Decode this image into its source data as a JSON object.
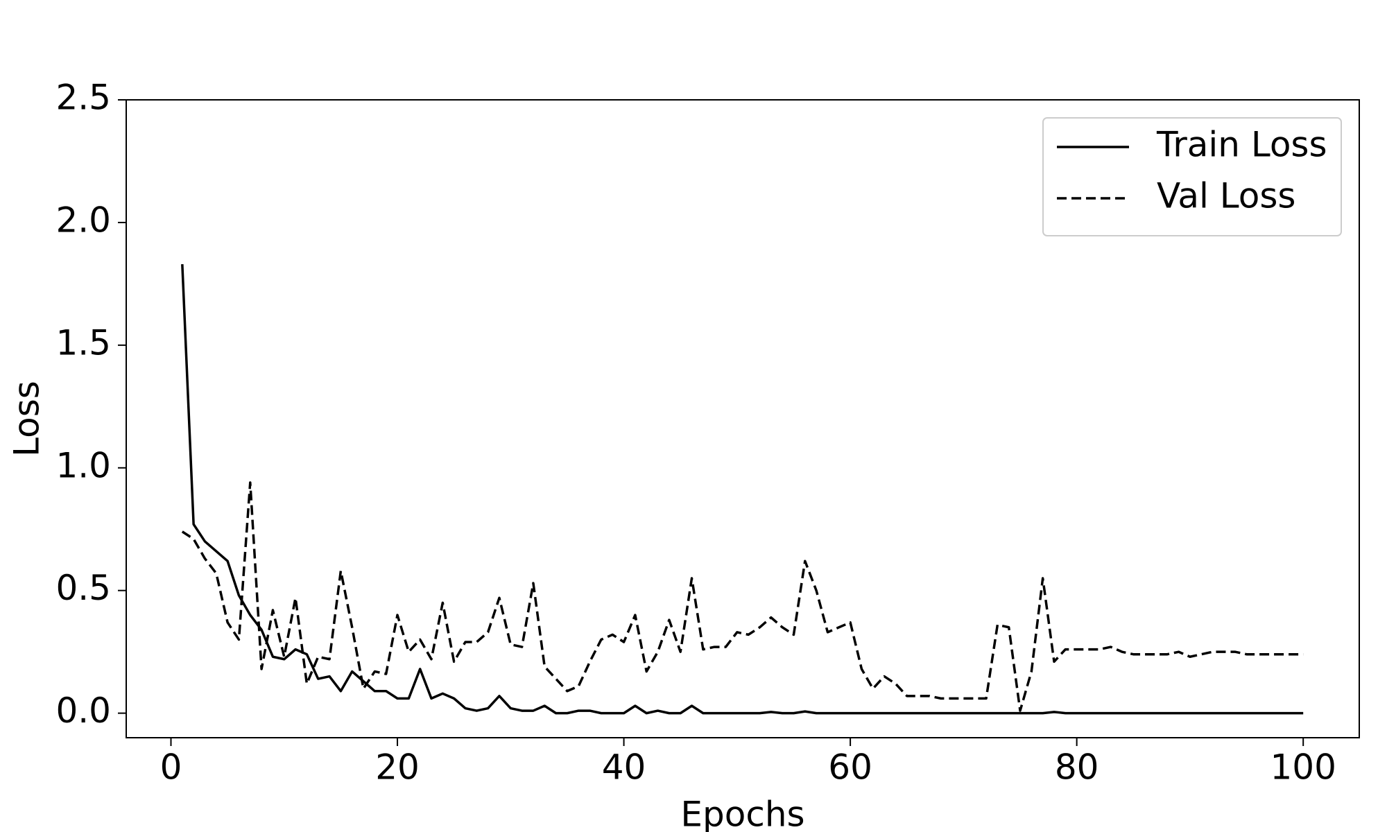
{
  "chart_data": {
    "type": "line",
    "xlabel": "Epochs",
    "ylabel": "Loss",
    "x": [
      1,
      2,
      3,
      4,
      5,
      6,
      7,
      8,
      9,
      10,
      11,
      12,
      13,
      14,
      15,
      16,
      17,
      18,
      19,
      20,
      21,
      22,
      23,
      24,
      25,
      26,
      27,
      28,
      29,
      30,
      31,
      32,
      33,
      34,
      35,
      36,
      37,
      38,
      39,
      40,
      41,
      42,
      43,
      44,
      45,
      46,
      47,
      48,
      49,
      50,
      51,
      52,
      53,
      54,
      55,
      56,
      57,
      58,
      59,
      60,
      61,
      62,
      63,
      64,
      65,
      66,
      67,
      68,
      69,
      70,
      71,
      72,
      73,
      74,
      75,
      76,
      77,
      78,
      79,
      80,
      81,
      82,
      83,
      84,
      85,
      86,
      87,
      88,
      89,
      90,
      91,
      92,
      93,
      94,
      95,
      96,
      97,
      98,
      99,
      100
    ],
    "series": [
      {
        "name": "Train Loss",
        "color": "#000000",
        "linestyle": "solid",
        "values": [
          1.83,
          0.77,
          0.7,
          0.66,
          0.62,
          0.48,
          0.4,
          0.34,
          0.23,
          0.22,
          0.26,
          0.24,
          0.14,
          0.15,
          0.09,
          0.17,
          0.13,
          0.09,
          0.09,
          0.06,
          0.06,
          0.18,
          0.06,
          0.08,
          0.06,
          0.02,
          0.01,
          0.02,
          0.07,
          0.02,
          0.01,
          0.01,
          0.03,
          0.0,
          0.0,
          0.01,
          0.01,
          0.0,
          0.0,
          0.0,
          0.03,
          0.0,
          0.01,
          0.0,
          0.0,
          0.03,
          0.0,
          0.0,
          0.0,
          0.0,
          0.0,
          0.0,
          0.005,
          0.0,
          0.0,
          0.007,
          0.0,
          0.0,
          0.0,
          0.0,
          0.0,
          0.0,
          0.0,
          0.0,
          0.0,
          0.0,
          0.0,
          0.0,
          0.0,
          0.0,
          0.0,
          0.0,
          0.0,
          0.0,
          0.0,
          0.0,
          0.0,
          0.005,
          0.0,
          0.0,
          0.0,
          0.0,
          0.0,
          0.0,
          0.0,
          0.0,
          0.0,
          0.0,
          0.0,
          0.0,
          0.0,
          0.0,
          0.0,
          0.0,
          0.0,
          0.0,
          0.0,
          0.0,
          0.0,
          0.0
        ]
      },
      {
        "name": "Val Loss",
        "color": "#000000",
        "linestyle": "dashed",
        "values": [
          0.74,
          0.71,
          0.63,
          0.57,
          0.37,
          0.3,
          0.94,
          0.18,
          0.42,
          0.23,
          0.47,
          0.12,
          0.23,
          0.22,
          0.58,
          0.35,
          0.1,
          0.17,
          0.16,
          0.4,
          0.25,
          0.3,
          0.22,
          0.45,
          0.21,
          0.29,
          0.29,
          0.33,
          0.47,
          0.28,
          0.27,
          0.53,
          0.19,
          0.14,
          0.09,
          0.11,
          0.21,
          0.3,
          0.32,
          0.29,
          0.4,
          0.17,
          0.25,
          0.38,
          0.25,
          0.55,
          0.26,
          0.27,
          0.27,
          0.33,
          0.32,
          0.35,
          0.39,
          0.35,
          0.32,
          0.62,
          0.5,
          0.33,
          0.35,
          0.37,
          0.18,
          0.1,
          0.15,
          0.12,
          0.07,
          0.07,
          0.07,
          0.06,
          0.06,
          0.06,
          0.06,
          0.06,
          0.36,
          0.35,
          0.01,
          0.17,
          0.55,
          0.21,
          0.26,
          0.26,
          0.26,
          0.26,
          0.27,
          0.25,
          0.24,
          0.24,
          0.24,
          0.24,
          0.25,
          0.23,
          0.24,
          0.25,
          0.25,
          0.25,
          0.24,
          0.24,
          0.24,
          0.24,
          0.24,
          0.24
        ]
      }
    ],
    "xlim": [
      -3.95,
      104.95
    ],
    "ylim": [
      -0.1,
      2.5
    ],
    "xticks": [
      0,
      20,
      40,
      60,
      80,
      100
    ],
    "yticks": [
      {
        "value": 0,
        "label": "0.0"
      },
      0.5,
      {
        "value": 1,
        "label": "1.0"
      },
      1.5,
      {
        "value": 2,
        "label": "2.0"
      },
      2.5
    ],
    "grid": false,
    "legend": "upper right"
  }
}
